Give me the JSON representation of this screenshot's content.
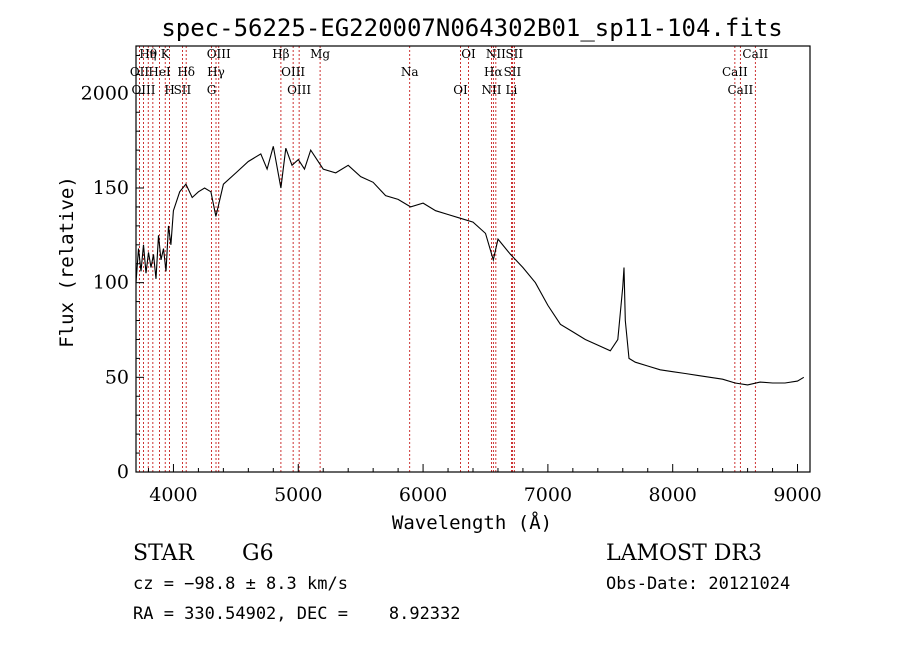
{
  "chart_data": {
    "type": "line",
    "title": "spec-56225-EG220007N064302B01_sp11-104.fits",
    "xlabel": "Wavelength (Å)",
    "ylabel": "Flux (relative)",
    "xlim": [
      3700,
      9100
    ],
    "ylim": [
      0,
      2250
    ],
    "xticks": [
      4000,
      5000,
      6000,
      7000,
      8000,
      9000
    ],
    "yticks": [
      0,
      50,
      100,
      150,
      2000
    ],
    "series": [
      {
        "x": [
          3700,
          3720,
          3740,
          3760,
          3780,
          3800,
          3820,
          3840,
          3860,
          3880,
          3900,
          3920,
          3940,
          3960,
          3980,
          4000,
          4050,
          4100,
          4150,
          4200,
          4250,
          4300,
          4340,
          4400,
          4500,
          4600,
          4700,
          4750,
          4800,
          4861,
          4900,
          4950,
          5000,
          5050,
          5100,
          5200,
          5300,
          5400,
          5500,
          5600,
          5700,
          5800,
          5900,
          6000,
          6100,
          6200,
          6300,
          6400,
          6500,
          6563,
          6600,
          6700,
          6800,
          6900,
          7000,
          7100,
          7200,
          7300,
          7400,
          7500,
          7560,
          7600,
          7610,
          7620,
          7650,
          7700,
          7800,
          7900,
          8000,
          8100,
          8200,
          8300,
          8400,
          8500,
          8600,
          8700,
          8800,
          8900,
          9000,
          9050
        ],
        "y": [
          1000,
          1180,
          1060,
          1200,
          1050,
          1160,
          1080,
          1150,
          1020,
          1250,
          1120,
          1180,
          1060,
          1300,
          1200,
          1380,
          1480,
          1520,
          1450,
          1480,
          1500,
          1480,
          1350,
          1520,
          1580,
          1640,
          1680,
          1600,
          1720,
          1500,
          1710,
          1620,
          1650,
          1600,
          1700,
          1600,
          1580,
          1620,
          1560,
          1530,
          1460,
          1440,
          1400,
          1420,
          1380,
          1360,
          1340,
          1320,
          1260,
          1120,
          1230,
          1150,
          1080,
          1000,
          880,
          780,
          740,
          700,
          670,
          640,
          700,
          980,
          1080,
          800,
          600,
          580,
          560,
          540,
          530,
          520,
          510,
          500,
          490,
          470,
          460,
          475,
          470,
          470,
          480,
          500
        ]
      }
    ],
    "line_markers": [
      {
        "name": "Hθ",
        "x": 3798
      },
      {
        "name": "OII",
        "x": 3728
      },
      {
        "name": "OIII",
        "x": 3760
      },
      {
        "name": "K",
        "x": 3934
      },
      {
        "name": "HeI",
        "x": 3889
      },
      {
        "name": "H",
        "x": 3969
      },
      {
        "name": "η",
        "x": 3835
      },
      {
        "name": "Hδ",
        "x": 4102
      },
      {
        "name": "SII",
        "x": 4072
      },
      {
        "name": "OIII",
        "x": 4363
      },
      {
        "name": "Hγ",
        "x": 4341
      },
      {
        "name": "G",
        "x": 4305
      },
      {
        "name": "Hβ",
        "x": 4861
      },
      {
        "name": "OIII",
        "x": 4959
      },
      {
        "name": "OIII",
        "x": 5007
      },
      {
        "name": "Mg",
        "x": 5175
      },
      {
        "name": "Na",
        "x": 5893
      },
      {
        "name": "OI",
        "x": 6300
      },
      {
        "name": "OI",
        "x": 6364
      },
      {
        "name": "Hα",
        "x": 6563
      },
      {
        "name": "NII",
        "x": 6548
      },
      {
        "name": "NII",
        "x": 6583
      },
      {
        "name": "SII",
        "x": 6716
      },
      {
        "name": "Li",
        "x": 6708
      },
      {
        "name": "SII",
        "x": 6731
      },
      {
        "name": "CaII",
        "x": 8498
      },
      {
        "name": "CaII",
        "x": 8542
      },
      {
        "name": "CaII",
        "x": 8662
      }
    ],
    "annotations": {
      "object_class": "STAR",
      "subclass": "G6",
      "survey": "LAMOST DR3",
      "redshift": "cz = −98.8 ± 8.3 km/s",
      "obs_date": "Obs-Date: 20121024",
      "coords": "RA = 330.54902, DEC =    8.92332"
    },
    "grid": false,
    "legend": "none"
  },
  "colors": {
    "spectrum": "#000000",
    "marker_line": "#c00000",
    "axis": "#000000",
    "background": "#ffffff"
  }
}
